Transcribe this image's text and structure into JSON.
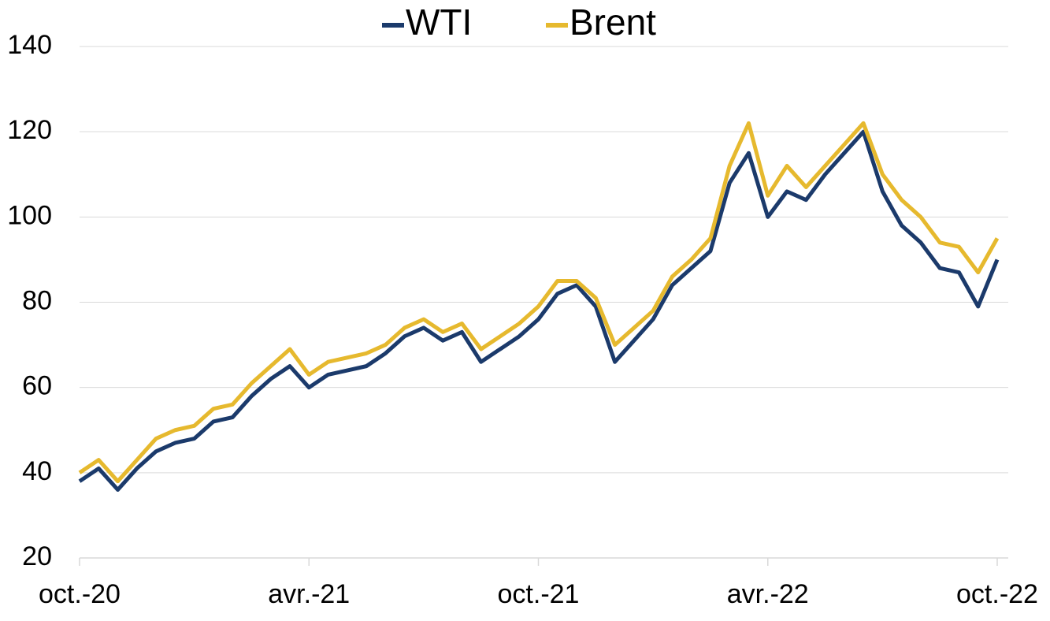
{
  "chart_data": {
    "type": "line",
    "categories": [
      "oct.-20",
      null,
      null,
      null,
      null,
      null,
      null,
      null,
      null,
      null,
      null,
      null,
      "avr.-21",
      null,
      null,
      null,
      null,
      null,
      null,
      null,
      null,
      null,
      null,
      null,
      "oct.-21",
      null,
      null,
      null,
      null,
      null,
      null,
      null,
      null,
      null,
      null,
      null,
      "avr.-22",
      null,
      null,
      null,
      null,
      null,
      null,
      null,
      null,
      null,
      null,
      null,
      "oct.-22"
    ],
    "series": [
      {
        "name": "WTI",
        "color": "#1b3a6b",
        "values": [
          38,
          41,
          36,
          41,
          45,
          47,
          48,
          52,
          53,
          58,
          62,
          65,
          60,
          63,
          64,
          65,
          68,
          72,
          74,
          71,
          73,
          66,
          69,
          72,
          76,
          82,
          84,
          79,
          66,
          71,
          76,
          84,
          88,
          92,
          108,
          115,
          100,
          106,
          104,
          110,
          115,
          120,
          106,
          98,
          94,
          88,
          87,
          79,
          90
        ]
      },
      {
        "name": "Brent",
        "color": "#e6b92e",
        "values": [
          40,
          43,
          38,
          43,
          48,
          50,
          51,
          55,
          56,
          61,
          65,
          69,
          63,
          66,
          67,
          68,
          70,
          74,
          76,
          73,
          75,
          69,
          72,
          75,
          79,
          85,
          85,
          81,
          70,
          74,
          78,
          86,
          90,
          95,
          112,
          122,
          105,
          112,
          107,
          112,
          117,
          122,
          110,
          104,
          100,
          94,
          93,
          87,
          95
        ]
      }
    ],
    "ylim": [
      20,
      140
    ],
    "yticks": [
      20,
      40,
      60,
      80,
      100,
      120,
      140
    ],
    "grid": true,
    "legend": "top"
  }
}
